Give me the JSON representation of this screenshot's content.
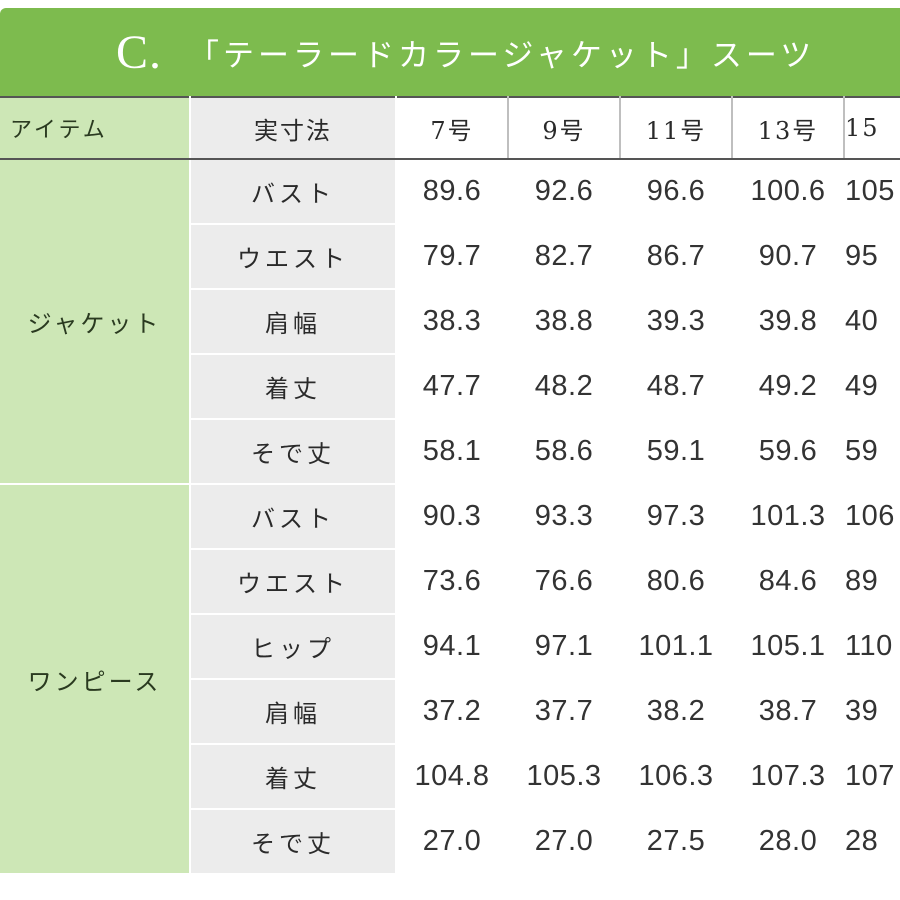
{
  "banner": {
    "letter": "C.",
    "title": "「テーラードカラージャケット」スーツ"
  },
  "header": {
    "item": "アイテム",
    "dimension": "実寸法",
    "sizes": [
      "7号",
      "9号",
      "11号",
      "13号",
      "15"
    ]
  },
  "groups": [
    {
      "label": "ジャケット",
      "rows": [
        {
          "dim": "バスト",
          "values": [
            "89.6",
            "92.6",
            "96.6",
            "100.6",
            "105"
          ]
        },
        {
          "dim": "ウエスト",
          "values": [
            "79.7",
            "82.7",
            "86.7",
            "90.7",
            "95"
          ]
        },
        {
          "dim": "肩幅",
          "values": [
            "38.3",
            "38.8",
            "39.3",
            "39.8",
            "40"
          ]
        },
        {
          "dim": "着丈",
          "values": [
            "47.7",
            "48.2",
            "48.7",
            "49.2",
            "49"
          ]
        },
        {
          "dim": "そで丈",
          "values": [
            "58.1",
            "58.6",
            "59.1",
            "59.6",
            "59"
          ]
        }
      ]
    },
    {
      "label": "ワンピース",
      "rows": [
        {
          "dim": "バスト",
          "values": [
            "90.3",
            "93.3",
            "97.3",
            "101.3",
            "106"
          ]
        },
        {
          "dim": "ウエスト",
          "values": [
            "73.6",
            "76.6",
            "80.6",
            "84.6",
            "89"
          ]
        },
        {
          "dim": "ヒップ",
          "values": [
            "94.1",
            "97.1",
            "101.1",
            "105.1",
            "110"
          ]
        },
        {
          "dim": "肩幅",
          "values": [
            "37.2",
            "37.7",
            "38.2",
            "38.7",
            "39"
          ]
        },
        {
          "dim": "着丈",
          "values": [
            "104.8",
            "105.3",
            "106.3",
            "107.3",
            "107"
          ]
        },
        {
          "dim": "そで丈",
          "values": [
            "27.0",
            "27.0",
            "27.5",
            "28.0",
            "28"
          ]
        }
      ]
    }
  ]
}
